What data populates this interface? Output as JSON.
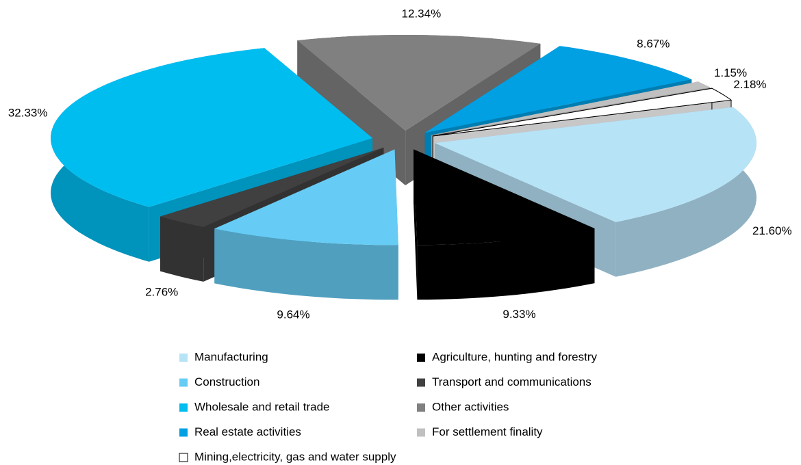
{
  "chart_data": {
    "type": "pie",
    "three_d": true,
    "exploded": true,
    "categories": [
      "Manufacturing",
      "Agriculture, hunting and forestry",
      "Construction",
      "Transport and communications",
      "Wholesale and retail trade",
      "Other activities",
      "Real estate activities",
      "For settlement finality",
      "Mining,electricity, gas and water supply"
    ],
    "values": [
      21.6,
      9.33,
      9.64,
      2.76,
      32.33,
      12.34,
      8.67,
      1.15,
      2.18
    ],
    "value_labels": [
      "21.60%",
      "9.33%",
      "9.64%",
      "2.76%",
      "32.33%",
      "12.34%",
      "8.67%",
      "1.15%",
      "2.18%"
    ],
    "colors": [
      "#b7e3f7",
      "#000000",
      "#66ccf5",
      "#404040",
      "#00bdf0",
      "#808080",
      "#00a0e3",
      "#c0c0c0",
      "#ffffff"
    ],
    "legend": "bottom"
  }
}
